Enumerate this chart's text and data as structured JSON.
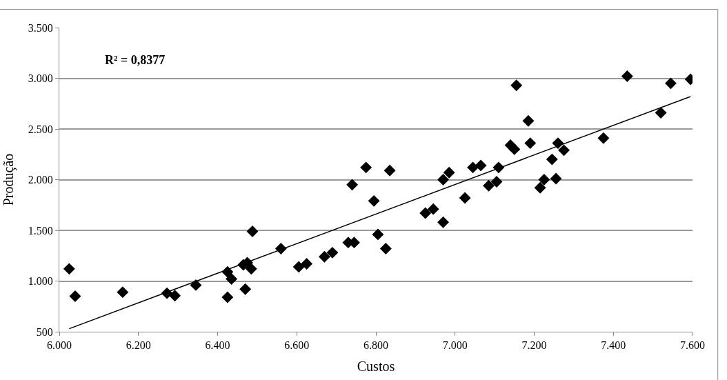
{
  "chart_data": {
    "type": "scatter",
    "xlabel": "Custos",
    "ylabel": "Produção",
    "annotations": [
      "R² = 0,8377"
    ],
    "x": [
      6025,
      6040,
      6160,
      6272,
      6292,
      6345,
      6425,
      6425,
      6435,
      6465,
      6475,
      6470,
      6485,
      6488,
      6560,
      6605,
      6625,
      6670,
      6690,
      6730,
      6745,
      6740,
      6775,
      6795,
      6805,
      6825,
      6835,
      6925,
      6945,
      6970,
      6970,
      6985,
      7025,
      7045,
      7065,
      7085,
      7105,
      7110,
      7140,
      7150,
      7155,
      7185,
      7190,
      7215,
      7225,
      7245,
      7255,
      7260,
      7275,
      7375,
      7435,
      7520,
      7545,
      7595
    ],
    "series": [
      {
        "color": "#000000",
        "marker": "diamond",
        "values": [
          1120,
          850,
          890,
          880,
          855,
          960,
          1090,
          840,
          1020,
          1160,
          1180,
          920,
          1120,
          1490,
          1320,
          1140,
          1170,
          1240,
          1280,
          1380,
          1380,
          1950,
          2120,
          1790,
          1460,
          1320,
          2090,
          1670,
          1710,
          1580,
          2000,
          2070,
          1820,
          2120,
          2140,
          1940,
          1980,
          2120,
          2340,
          2300,
          2930,
          2580,
          2360,
          1920,
          2000,
          2200,
          2010,
          2360,
          2290,
          2410,
          3020,
          2660,
          2950,
          2990
        ]
      },
      {
        "type": "line",
        "color": "#000000",
        "marker": "none",
        "x": [
          6025,
          7595
        ],
        "values": [
          530,
          2820
        ]
      }
    ],
    "xlim": [
      6000,
      7600
    ],
    "xticks": [
      {
        "value": 6000,
        "label": "6.000"
      },
      {
        "value": 6200,
        "label": "6.200"
      },
      {
        "value": 6400,
        "label": "6.400"
      },
      {
        "value": 6600,
        "label": "6.600"
      },
      {
        "value": 6800,
        "label": "6.800"
      },
      {
        "value": 7000,
        "label": "7.000"
      },
      {
        "value": 7200,
        "label": "7.200"
      },
      {
        "value": 7400,
        "label": "7.400"
      },
      {
        "value": 7600,
        "label": "7.600"
      }
    ],
    "ylim": [
      500,
      3500
    ],
    "yticks": [
      500,
      {
        "value": 1000,
        "label": "1.000"
      },
      {
        "value": 1500,
        "label": "1.500"
      },
      {
        "value": 2000,
        "label": "2.000"
      },
      {
        "value": 2500,
        "label": "2.500"
      },
      {
        "value": 3000,
        "label": "3.000"
      },
      {
        "value": 3500,
        "label": "3.500"
      }
    ],
    "grid": "y",
    "legend": false
  }
}
